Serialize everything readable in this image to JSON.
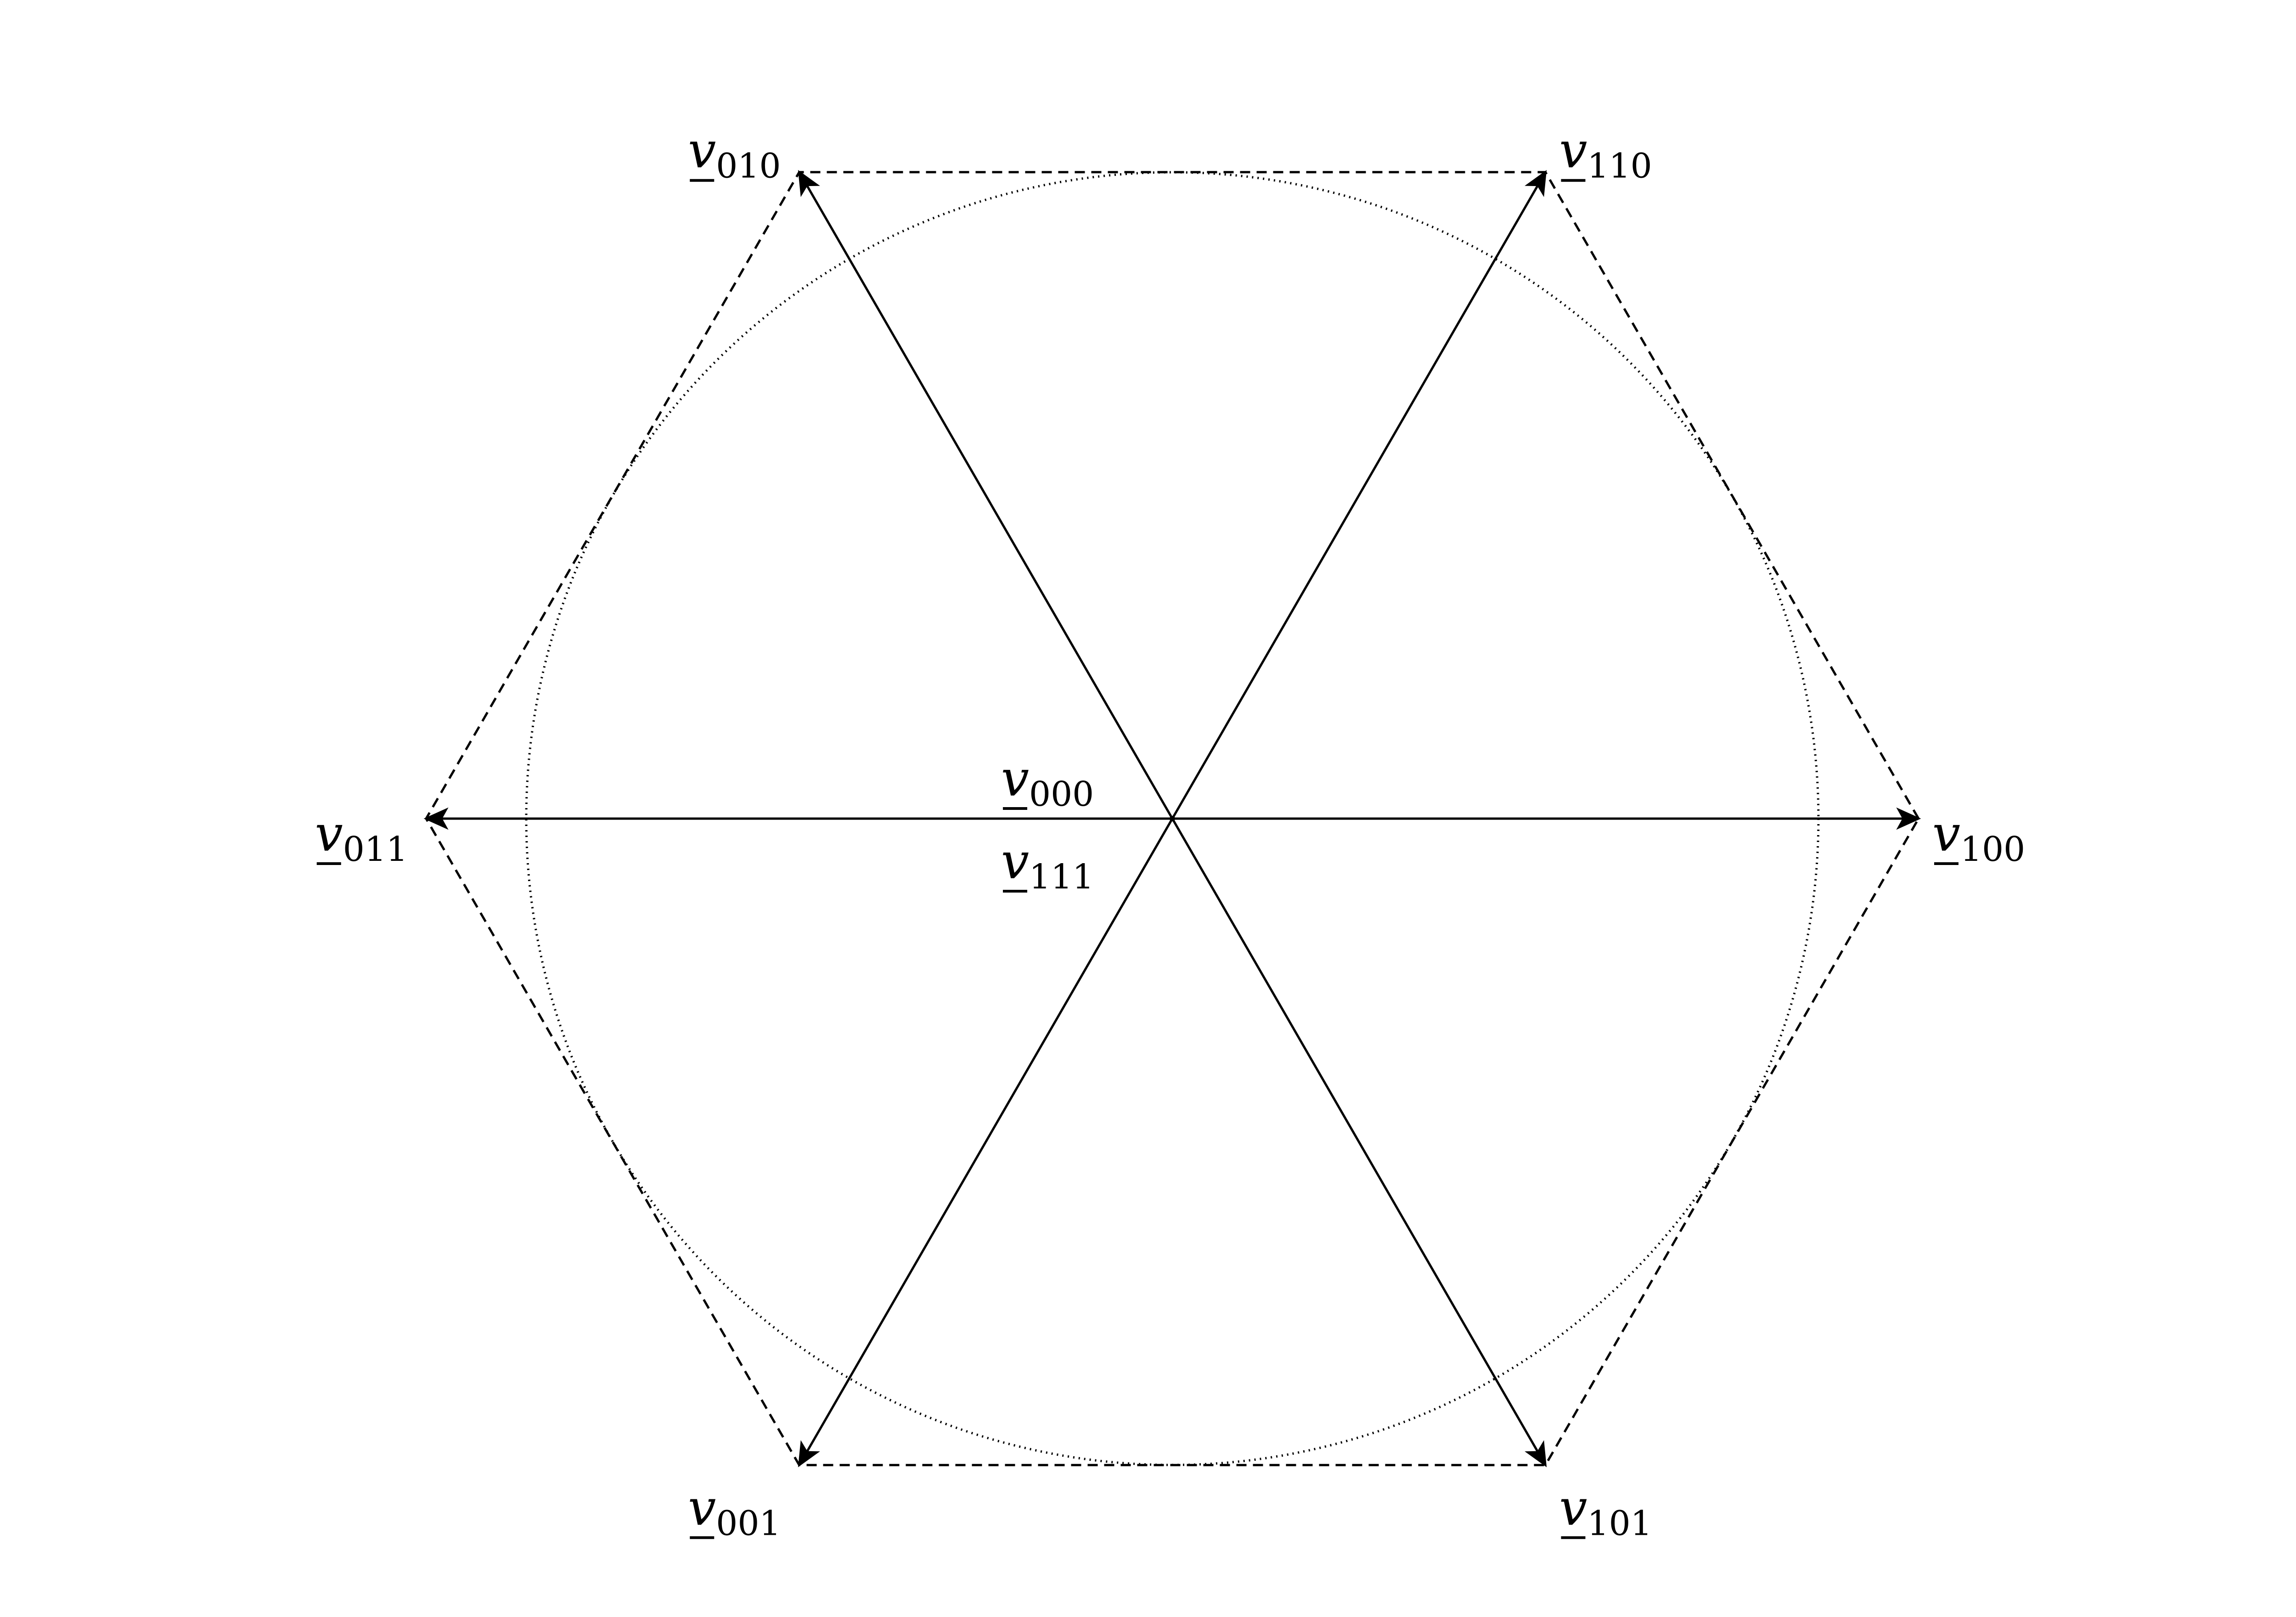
{
  "diagram": {
    "type": "space-vector-hexagon",
    "colors": {
      "stroke": "#000000",
      "background": "#ffffff"
    },
    "vectors": [
      {
        "id": "v100",
        "symbol": "v",
        "subscript": "100",
        "angle_deg": 0
      },
      {
        "id": "v110",
        "symbol": "v",
        "subscript": "110",
        "angle_deg": 60
      },
      {
        "id": "v010",
        "symbol": "v",
        "subscript": "010",
        "angle_deg": 120
      },
      {
        "id": "v011",
        "symbol": "v",
        "subscript": "011",
        "angle_deg": 180
      },
      {
        "id": "v001",
        "symbol": "v",
        "subscript": "001",
        "angle_deg": 240
      },
      {
        "id": "v101",
        "symbol": "v",
        "subscript": "101",
        "angle_deg": 300
      }
    ],
    "zero_vectors": [
      {
        "id": "v000",
        "symbol": "v",
        "subscript": "000"
      },
      {
        "id": "v111",
        "symbol": "v",
        "subscript": "111"
      }
    ],
    "hexagon_outline": "dashed",
    "inscribed_circle": "dotted"
  }
}
